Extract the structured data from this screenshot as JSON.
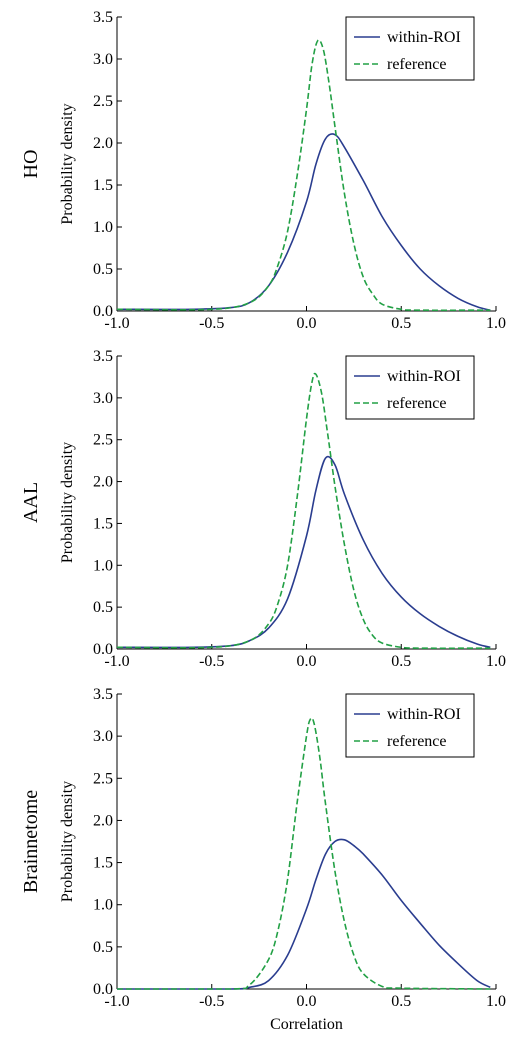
{
  "chart_data": [
    {
      "type": "line",
      "row_label": "HO",
      "ylabel": "Probability density",
      "xlabel": "",
      "xlim": [
        -1.0,
        1.0
      ],
      "ylim": [
        0.0,
        3.5
      ],
      "x_ticks": [
        "-1.0",
        "-0.5",
        "0.0",
        "0.5",
        "1.0"
      ],
      "y_ticks": [
        "0.0",
        "0.5",
        "1.0",
        "1.5",
        "2.0",
        "2.5",
        "3.0",
        "3.5"
      ],
      "legend_position": "top-right",
      "series": [
        {
          "name": "within-ROI",
          "color": "#2a3d8f",
          "style": "solid",
          "x": [
            -1.0,
            -0.6,
            -0.4,
            -0.3,
            -0.2,
            -0.1,
            0.0,
            0.05,
            0.1,
            0.15,
            0.2,
            0.3,
            0.4,
            0.5,
            0.6,
            0.7,
            0.8,
            0.9,
            0.97
          ],
          "y": [
            0.02,
            0.02,
            0.04,
            0.1,
            0.3,
            0.7,
            1.3,
            1.75,
            2.05,
            2.1,
            1.95,
            1.55,
            1.12,
            0.78,
            0.5,
            0.3,
            0.15,
            0.05,
            0.01
          ]
        },
        {
          "name": "reference",
          "color": "#22a045",
          "style": "dashed",
          "x": [
            -1.0,
            -0.5,
            -0.3,
            -0.2,
            -0.15,
            -0.1,
            -0.05,
            0.0,
            0.03,
            0.06,
            0.09,
            0.12,
            0.15,
            0.2,
            0.25,
            0.3,
            0.35,
            0.4,
            0.5,
            0.6,
            0.97
          ],
          "y": [
            0.02,
            0.02,
            0.1,
            0.3,
            0.55,
            0.95,
            1.6,
            2.4,
            2.95,
            3.22,
            3.1,
            2.7,
            2.2,
            1.4,
            0.8,
            0.4,
            0.2,
            0.08,
            0.02,
            0.01,
            0.01
          ]
        }
      ]
    },
    {
      "type": "line",
      "row_label": "AAL",
      "ylabel": "Probability density",
      "xlabel": "",
      "xlim": [
        -1.0,
        1.0
      ],
      "ylim": [
        0.0,
        3.5
      ],
      "x_ticks": [
        "-1.0",
        "-0.5",
        "0.0",
        "0.5",
        "1.0"
      ],
      "y_ticks": [
        "0.0",
        "0.5",
        "1.0",
        "1.5",
        "2.0",
        "2.5",
        "3.0",
        "3.5"
      ],
      "legend_position": "top-right",
      "series": [
        {
          "name": "within-ROI",
          "color": "#2a3d8f",
          "style": "solid",
          "x": [
            -1.0,
            -0.6,
            -0.4,
            -0.3,
            -0.2,
            -0.1,
            0.0,
            0.05,
            0.1,
            0.15,
            0.2,
            0.3,
            0.4,
            0.5,
            0.6,
            0.7,
            0.8,
            0.9,
            0.97
          ],
          "y": [
            0.02,
            0.02,
            0.04,
            0.1,
            0.25,
            0.6,
            1.35,
            1.9,
            2.28,
            2.2,
            1.85,
            1.3,
            0.9,
            0.62,
            0.42,
            0.27,
            0.15,
            0.06,
            0.02
          ]
        },
        {
          "name": "reference",
          "color": "#22a045",
          "style": "dashed",
          "x": [
            -1.0,
            -0.5,
            -0.3,
            -0.2,
            -0.15,
            -0.1,
            -0.05,
            0.0,
            0.03,
            0.05,
            0.08,
            0.11,
            0.15,
            0.2,
            0.25,
            0.3,
            0.35,
            0.4,
            0.5,
            0.6,
            0.97
          ],
          "y": [
            0.02,
            0.02,
            0.1,
            0.3,
            0.55,
            1.0,
            1.8,
            2.75,
            3.2,
            3.28,
            3.05,
            2.6,
            1.95,
            1.25,
            0.7,
            0.35,
            0.16,
            0.07,
            0.02,
            0.01,
            0.01
          ]
        }
      ]
    },
    {
      "type": "line",
      "row_label": "Brainnetome",
      "ylabel": "Probability density",
      "xlabel": "Correlation",
      "xlim": [
        -1.0,
        1.0
      ],
      "ylim": [
        0.0,
        3.5
      ],
      "x_ticks": [
        "-1.0",
        "-0.5",
        "0.0",
        "0.5",
        "1.0"
      ],
      "y_ticks": [
        "0.0",
        "0.5",
        "1.0",
        "1.5",
        "2.0",
        "2.5",
        "3.0",
        "3.5"
      ],
      "legend_position": "top-right",
      "series": [
        {
          "name": "within-ROI",
          "color": "#2a3d8f",
          "style": "solid",
          "x": [
            -1.0,
            -0.4,
            -0.3,
            -0.2,
            -0.1,
            0.0,
            0.05,
            0.1,
            0.15,
            0.2,
            0.25,
            0.3,
            0.4,
            0.5,
            0.6,
            0.7,
            0.8,
            0.9,
            0.97
          ],
          "y": [
            0.0,
            0.0,
            0.02,
            0.1,
            0.4,
            0.95,
            1.3,
            1.6,
            1.75,
            1.77,
            1.7,
            1.6,
            1.35,
            1.05,
            0.78,
            0.52,
            0.3,
            0.1,
            0.02
          ]
        },
        {
          "name": "reference",
          "color": "#22a045",
          "style": "dashed",
          "x": [
            -1.0,
            -0.4,
            -0.3,
            -0.2,
            -0.15,
            -0.1,
            -0.05,
            0.0,
            0.02,
            0.04,
            0.07,
            0.1,
            0.15,
            0.2,
            0.25,
            0.3,
            0.4,
            0.5,
            0.97
          ],
          "y": [
            0.0,
            0.0,
            0.05,
            0.35,
            0.7,
            1.3,
            2.2,
            3.0,
            3.2,
            3.15,
            2.75,
            2.2,
            1.4,
            0.8,
            0.4,
            0.18,
            0.03,
            0.01,
            0.0
          ]
        }
      ]
    }
  ]
}
